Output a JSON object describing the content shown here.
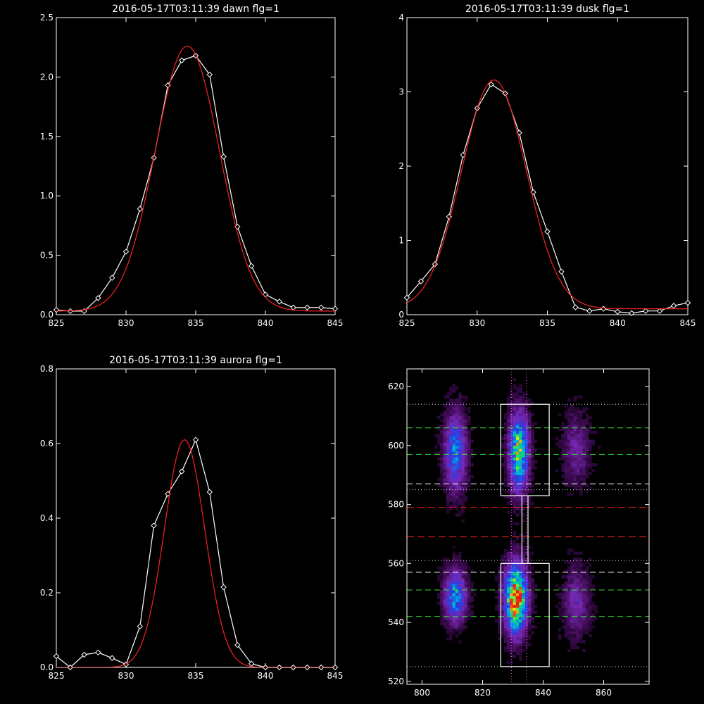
{
  "chart_data": [
    {
      "type": "line",
      "title": "2016-05-17T03:11:39 dawn flg=1",
      "xlim": [
        825,
        845
      ],
      "ylim": [
        0,
        2.5
      ],
      "xticks": [
        "825",
        "830",
        "835",
        "840",
        "845"
      ],
      "yticks": [
        "0.0",
        "0.5",
        "1.0",
        "1.5",
        "2.0",
        "2.5"
      ],
      "xtick_values": [
        825,
        830,
        835,
        840,
        845
      ],
      "ytick_values": [
        0,
        0.5,
        1.0,
        1.5,
        2.0,
        2.5
      ],
      "series": [
        {
          "color": "#ffffff",
          "marker": "diamond",
          "x": [
            825,
            826,
            827,
            828,
            829,
            830,
            831,
            832,
            833,
            834,
            835,
            836,
            837,
            838,
            839,
            840,
            841,
            842,
            843,
            844,
            845
          ],
          "y": [
            0.04,
            0.03,
            0.03,
            0.14,
            0.31,
            0.53,
            0.89,
            1.32,
            1.93,
            2.14,
            2.18,
            2.02,
            1.33,
            0.74,
            0.41,
            0.17,
            0.11,
            0.06,
            0.06,
            0.06,
            0.05
          ]
        },
        {
          "color": "#ff2020",
          "fit": {
            "amp": 2.23,
            "center": 834.4,
            "sigma": 2.3,
            "offset": 0.03
          }
        }
      ]
    },
    {
      "type": "line",
      "title": "2016-05-17T03:11:39 dusk flg=1",
      "xlim": [
        825,
        845
      ],
      "ylim": [
        0,
        4
      ],
      "xticks": [
        "825",
        "830",
        "835",
        "840",
        "845"
      ],
      "yticks": [
        "0",
        "1",
        "2",
        "3",
        "4"
      ],
      "xtick_values": [
        825,
        830,
        835,
        840,
        845
      ],
      "ytick_values": [
        0,
        1,
        2,
        3,
        4
      ],
      "series": [
        {
          "color": "#ffffff",
          "marker": "diamond",
          "x": [
            825,
            826,
            827,
            828,
            829,
            830,
            831,
            832,
            833,
            834,
            835,
            836,
            837,
            838,
            839,
            840,
            841,
            842,
            843,
            844,
            845
          ],
          "y": [
            0.23,
            0.45,
            0.68,
            1.32,
            2.15,
            2.78,
            3.1,
            2.98,
            2.45,
            1.65,
            1.12,
            0.58,
            0.1,
            0.05,
            0.08,
            0.04,
            0.02,
            0.05,
            0.05,
            0.12,
            0.16
          ]
        },
        {
          "color": "#ff2020",
          "fit": {
            "amp": 3.08,
            "center": 831.2,
            "sigma": 2.3,
            "offset": 0.08
          }
        }
      ]
    },
    {
      "type": "line",
      "title": "2016-05-17T03:11:39 aurora flg=1",
      "xlim": [
        825,
        845
      ],
      "ylim": [
        0,
        0.8
      ],
      "xticks": [
        "825",
        "830",
        "835",
        "840",
        "845"
      ],
      "yticks": [
        "0.0",
        "0.2",
        "0.4",
        "0.6",
        "0.8"
      ],
      "xtick_values": [
        825,
        830,
        835,
        840,
        845
      ],
      "ytick_values": [
        0,
        0.2,
        0.4,
        0.6,
        0.8
      ],
      "series": [
        {
          "color": "#ffffff",
          "marker": "diamond",
          "x": [
            825,
            826,
            827,
            828,
            829,
            830,
            831,
            832,
            833,
            834,
            835,
            836,
            837,
            838,
            839,
            840,
            841,
            842,
            843,
            844,
            845
          ],
          "y": [
            0.03,
            0.0,
            0.034,
            0.04,
            0.025,
            0.008,
            0.11,
            0.38,
            0.465,
            0.525,
            0.61,
            0.47,
            0.215,
            0.06,
            0.01,
            0.0,
            0.0,
            0.0,
            0.0,
            0.0,
            0.0
          ]
        },
        {
          "color": "#ff2020",
          "fit": {
            "amp": 0.61,
            "center": 834.2,
            "sigma": 1.45,
            "offset": 0.0
          }
        }
      ]
    },
    {
      "type": "heatmap",
      "title": "",
      "xlim": [
        795,
        875
      ],
      "ylim": [
        519,
        626
      ],
      "xticks": [
        "800",
        "820",
        "840",
        "860"
      ],
      "yticks": [
        "520",
        "540",
        "560",
        "580",
        "600",
        "620"
      ],
      "xtick_values": [
        800,
        820,
        840,
        860
      ],
      "ytick_values": [
        520,
        540,
        560,
        580,
        600,
        620
      ],
      "blobs": [
        {
          "x": 811,
          "y": 598,
          "sx": 2.5,
          "sy": 9,
          "amp": 0.5
        },
        {
          "x": 811,
          "y": 549,
          "sx": 2.5,
          "sy": 6,
          "amp": 0.55
        },
        {
          "x": 832,
          "y": 598,
          "sx": 2.2,
          "sy": 9,
          "amp": 0.75
        },
        {
          "x": 831,
          "y": 548,
          "sx": 2.5,
          "sy": 8,
          "amp": 1.0
        },
        {
          "x": 851,
          "y": 599,
          "sx": 3,
          "sy": 8,
          "amp": 0.22
        },
        {
          "x": 851,
          "y": 547,
          "sx": 3,
          "sy": 8,
          "amp": 0.25
        }
      ],
      "dotted_white_h": [
        614,
        585,
        561,
        525
      ],
      "dotted_magenta_v": [
        829.5,
        834.5
      ],
      "dashed_green_h": [
        606,
        597,
        551,
        542
      ],
      "dashed_white_h": [
        587,
        557
      ],
      "dashed_red_h": [
        579,
        569
      ],
      "boxes": [
        {
          "x0": 826,
          "x1": 842,
          "y0": 583,
          "y1": 614
        },
        {
          "x0": 826,
          "x1": 842,
          "y0": 525,
          "y1": 560
        }
      ],
      "connector_x": [
        833,
        835
      ]
    }
  ]
}
